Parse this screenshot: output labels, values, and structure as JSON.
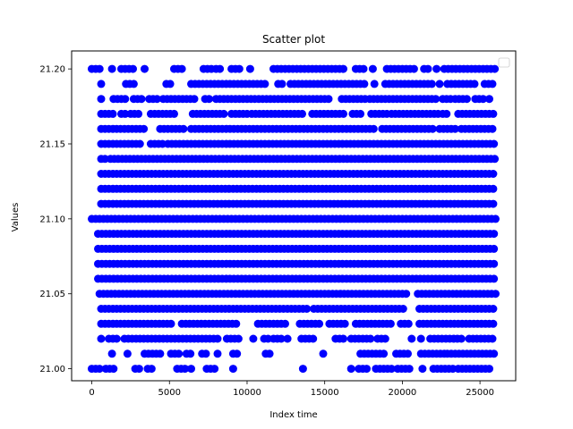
{
  "chart_data": {
    "type": "scatter",
    "title": "Scatter plot",
    "xlabel": "Index time",
    "ylabel": "Values",
    "xlim": [
      -1300,
      27300
    ],
    "ylim": [
      20.992,
      21.212
    ],
    "x_ticks": [
      0,
      5000,
      10000,
      15000,
      20000,
      25000
    ],
    "y_ticks": [
      21.0,
      21.05,
      21.1,
      21.15,
      21.2
    ],
    "x_tick_labels": [
      "0",
      "5000",
      "10000",
      "15000",
      "20000",
      "25000"
    ],
    "y_tick_labels": [
      "21.00",
      "21.05",
      "21.10",
      "21.15",
      "21.20"
    ],
    "legend": {
      "location": "upper right",
      "entries": []
    },
    "marker_color": "#0000ff",
    "x_range_of_points": [
      0,
      26000
    ],
    "series": [
      {
        "levels": [
          {
            "y": 21.2,
            "runs": [
              [
                0,
                600
              ],
              [
                1300,
                1400
              ],
              [
                1900,
                2800
              ],
              [
                3400,
                3500
              ],
              [
                5300,
                6000
              ],
              [
                7200,
                7800
              ],
              [
                8000,
                8400
              ],
              [
                9000,
                9500
              ],
              [
                10200,
                10400
              ],
              [
                11700,
                16400
              ],
              [
                17000,
                17600
              ],
              [
                18100,
                18200
              ],
              [
                19000,
                20800
              ],
              [
                21400,
                21700
              ],
              [
                22200,
                22400
              ],
              [
                22700,
                25600
              ],
              [
                25700,
                26000
              ]
            ]
          },
          {
            "y": 21.19,
            "runs": [
              [
                600,
                700
              ],
              [
                2200,
                2800
              ],
              [
                4800,
                5100
              ],
              [
                6400,
                11200
              ],
              [
                12000,
                12400
              ],
              [
                12800,
                17600
              ],
              [
                18200,
                18300
              ],
              [
                18900,
                22100
              ],
              [
                22400,
                22600
              ],
              [
                22900,
                24700
              ],
              [
                25300,
                25900
              ]
            ]
          },
          {
            "y": 21.18,
            "runs": [
              [
                600,
                700
              ],
              [
                1400,
                2200
              ],
              [
                2700,
                3200
              ],
              [
                3700,
                4200
              ],
              [
                4600,
                6600
              ],
              [
                7300,
                7700
              ],
              [
                8000,
                15400
              ],
              [
                16100,
                17800
              ],
              [
                17900,
                22300
              ],
              [
                22600,
                23200
              ],
              [
                23400,
                24200
              ],
              [
                24700,
                25200
              ],
              [
                25600,
                25800
              ]
            ]
          },
          {
            "y": 21.17,
            "runs": [
              [
                600,
                1500
              ],
              [
                1900,
                2300
              ],
              [
                2500,
                3200
              ],
              [
                3800,
                5400
              ],
              [
                6500,
                8600
              ],
              [
                9000,
                10100
              ],
              [
                10300,
                13600
              ],
              [
                14200,
                16400
              ],
              [
                16800,
                17500
              ],
              [
                18000,
                19100
              ],
              [
                19300,
                22300
              ],
              [
                22600,
                22900
              ],
              [
                23600,
                25400
              ],
              [
                25600,
                26000
              ]
            ]
          },
          {
            "y": 21.16,
            "runs": [
              [
                600,
                900
              ],
              [
                1100,
                3500
              ],
              [
                4400,
                5900
              ],
              [
                6400,
                18200
              ],
              [
                18700,
                22100
              ],
              [
                22400,
                23500
              ],
              [
                23800,
                26000
              ]
            ]
          },
          {
            "y": 21.15,
            "runs": [
              [
                600,
                3200
              ],
              [
                3800,
                4600
              ],
              [
                4900,
                26000
              ]
            ]
          },
          {
            "y": 21.14,
            "runs": [
              [
                600,
                900
              ],
              [
                1200,
                26000
              ]
            ]
          },
          {
            "y": 21.13,
            "runs": [
              [
                600,
                26000
              ]
            ]
          },
          {
            "y": 21.12,
            "runs": [
              [
                600,
                26000
              ]
            ]
          },
          {
            "y": 21.11,
            "runs": [
              [
                600,
                26000
              ]
            ]
          },
          {
            "y": 21.1,
            "runs": [
              [
                0,
                26000
              ]
            ]
          },
          {
            "y": 21.09,
            "runs": [
              [
                400,
                26000
              ]
            ]
          },
          {
            "y": 21.08,
            "runs": [
              [
                400,
                26000
              ]
            ]
          },
          {
            "y": 21.07,
            "runs": [
              [
                400,
                26000
              ]
            ]
          },
          {
            "y": 21.06,
            "runs": [
              [
                400,
                26000
              ]
            ]
          },
          {
            "y": 21.05,
            "runs": [
              [
                500,
                20300
              ],
              [
                21000,
                26000
              ]
            ]
          },
          {
            "y": 21.04,
            "runs": [
              [
                600,
                14000
              ],
              [
                14300,
                20200
              ],
              [
                21100,
                26000
              ]
            ]
          },
          {
            "y": 21.03,
            "runs": [
              [
                600,
                5300
              ],
              [
                5800,
                9300
              ],
              [
                10700,
                12600
              ],
              [
                13400,
                14700
              ],
              [
                15300,
                16300
              ],
              [
                17000,
                19300
              ],
              [
                19900,
                20400
              ],
              [
                21100,
                26000
              ]
            ]
          },
          {
            "y": 21.02,
            "runs": [
              [
                600,
                700
              ],
              [
                1100,
                1700
              ],
              [
                2100,
                8300
              ],
              [
                8700,
                9500
              ],
              [
                10400,
                10600
              ],
              [
                11100,
                11500
              ],
              [
                11700,
                12300
              ],
              [
                12600,
                12700
              ],
              [
                13500,
                14300
              ],
              [
                15700,
                16300
              ],
              [
                16700,
                18100
              ],
              [
                18400,
                18900
              ],
              [
                20600,
                20800
              ],
              [
                21200,
                21400
              ],
              [
                21800,
                24000
              ],
              [
                24300,
                26000
              ]
            ]
          },
          {
            "y": 21.01,
            "runs": [
              [
                1300,
                1400
              ],
              [
                2300,
                2400
              ],
              [
                3400,
                4500
              ],
              [
                5100,
                5600
              ],
              [
                6100,
                6500
              ],
              [
                7100,
                7500
              ],
              [
                8100,
                8200
              ],
              [
                9100,
                9500
              ],
              [
                11200,
                11500
              ],
              [
                14900,
                15000
              ],
              [
                17300,
                19000
              ],
              [
                19600,
                20500
              ],
              [
                21200,
                22700
              ],
              [
                22900,
                26000
              ]
            ]
          },
          {
            "y": 21.0,
            "runs": [
              [
                0,
                700
              ],
              [
                900,
                1400
              ],
              [
                2800,
                3200
              ],
              [
                3600,
                4000
              ],
              [
                5500,
                6000
              ],
              [
                6400,
                6500
              ],
              [
                7400,
                7900
              ],
              [
                9100,
                9200
              ],
              [
                13600,
                13700
              ],
              [
                16700,
                16800
              ],
              [
                17200,
                17900
              ],
              [
                18300,
                19400
              ],
              [
                19700,
                20600
              ],
              [
                21300,
                21400
              ],
              [
                22000,
                23300
              ],
              [
                23600,
                25600
              ]
            ]
          }
        ]
      }
    ]
  }
}
